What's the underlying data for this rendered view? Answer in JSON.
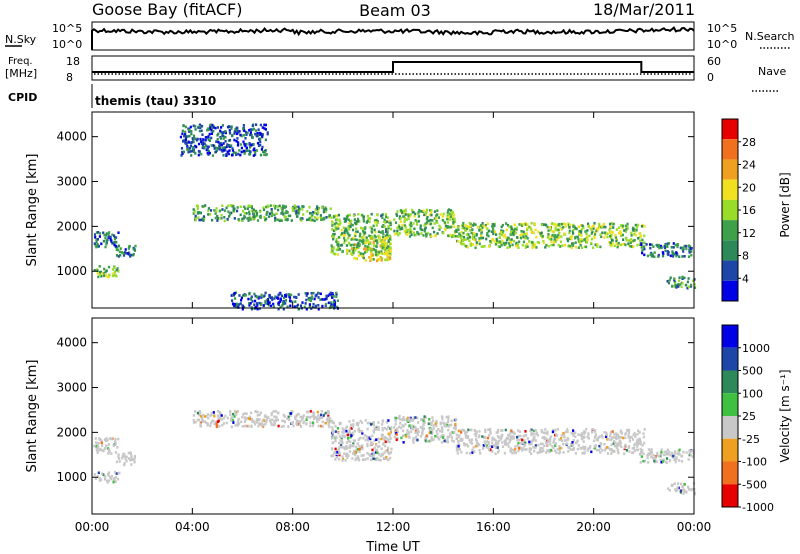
{
  "header": {
    "station": "Goose Bay (fitACF)",
    "beam": "Beam 03",
    "date": "18/Mar/2011"
  },
  "labels": {
    "nsky": "N.Sky",
    "nsearch": "N.Search",
    "freq": "Freq.",
    "freq_unit": "[MHz]",
    "cpid": "CPID",
    "nave": "Nave",
    "cpid_value": "themis (tau) 3310",
    "exp_top": "10^5",
    "exp_bottom": "10^0",
    "freq_tick_high": "18",
    "freq_tick_low": "8",
    "nave_tick_high": "60",
    "nave_tick_low": "0"
  },
  "chart_data": [
    {
      "type": "heatmap",
      "name": "power-panel",
      "xlabel": "",
      "ylabel": "Slant Range [km]",
      "colorbar_label": "Power [dB]",
      "xlim": [
        0,
        24
      ],
      "ylim": [
        180,
        4550
      ],
      "yticks": [
        "1000",
        "2000",
        "3000",
        "4000"
      ],
      "colorbar_ticks": [
        "4",
        "8",
        "12",
        "16",
        "20",
        "24",
        "28"
      ],
      "colorbar_range": [
        0,
        32
      ],
      "colors": [
        "#0000e6",
        "#1e46a8",
        "#2d8a58",
        "#3fa04a",
        "#9adc2a",
        "#f0e020",
        "#f0a020",
        "#f07020",
        "#e60000"
      ],
      "regions": [
        {
          "t0": 0.05,
          "t1": 1.05,
          "r0": 1550,
          "r1": 1900,
          "v": 8
        },
        {
          "t0": 0.05,
          "t1": 1.05,
          "r0": 900,
          "r1": 1150,
          "v": 14
        },
        {
          "t0": 0.9,
          "t1": 1.7,
          "r0": 1300,
          "r1": 1600,
          "v": 8
        },
        {
          "t0": 4.0,
          "t1": 9.5,
          "r0": 2150,
          "r1": 2500,
          "v": 12
        },
        {
          "t0": 9.5,
          "t1": 11.9,
          "r0": 1400,
          "r1": 2300,
          "v": 13
        },
        {
          "t0": 10.3,
          "t1": 11.9,
          "r0": 1250,
          "r1": 1800,
          "v": 17
        },
        {
          "t0": 12.0,
          "t1": 14.5,
          "r0": 1800,
          "r1": 2400,
          "v": 14
        },
        {
          "t0": 14.5,
          "t1": 22.0,
          "r0": 1550,
          "r1": 2100,
          "v": 15
        },
        {
          "t0": 21.8,
          "t1": 24.0,
          "r0": 1350,
          "r1": 1650,
          "v": 8
        },
        {
          "t0": 22.9,
          "t1": 24.0,
          "r0": 650,
          "r1": 900,
          "v": 10
        },
        {
          "t0": 5.5,
          "t1": 9.8,
          "r0": 180,
          "r1": 550,
          "v": 6
        },
        {
          "t0": 3.5,
          "t1": 7.0,
          "r0": 3600,
          "r1": 4300,
          "v": 6
        }
      ]
    },
    {
      "type": "heatmap",
      "name": "velocity-panel",
      "xlabel": "Time UT",
      "ylabel": "Slant Range [km]",
      "colorbar_label": "Velocity [m s⁻¹]",
      "xlim": [
        0,
        24
      ],
      "ylim": [
        180,
        4550
      ],
      "xticks": [
        "00:00",
        "04:00",
        "08:00",
        "12:00",
        "16:00",
        "20:00",
        "00:00"
      ],
      "yticks": [
        "1000",
        "2000",
        "3000",
        "4000"
      ],
      "colorbar_ticks": [
        "1000",
        "500",
        "100",
        "25",
        "-25",
        "-100",
        "-500",
        "-1000"
      ],
      "colors": [
        "#0000e6",
        "#1e46a8",
        "#2d8a58",
        "#3fc040",
        "#c8c8c8",
        "#f0a020",
        "#f07020",
        "#e60000"
      ],
      "regions": [
        {
          "t0": 0.05,
          "t1": 1.05,
          "r0": 1550,
          "r1": 1900,
          "v": 3
        },
        {
          "t0": 0.05,
          "t1": 1.05,
          "r0": 900,
          "r1": 1150,
          "v": 4
        },
        {
          "t0": 0.9,
          "t1": 1.7,
          "r0": 1300,
          "r1": 1600,
          "v": 2
        },
        {
          "t0": 4.0,
          "t1": 9.5,
          "r0": 2150,
          "r1": 2500,
          "v": 4
        },
        {
          "t0": 9.5,
          "t1": 11.9,
          "r0": 1400,
          "r1": 2300,
          "v": 4
        },
        {
          "t0": 12.0,
          "t1": 14.5,
          "r0": 1800,
          "r1": 2400,
          "v": 4
        },
        {
          "t0": 14.5,
          "t1": 22.0,
          "r0": 1550,
          "r1": 2100,
          "v": 4
        },
        {
          "t0": 21.8,
          "t1": 24.0,
          "r0": 1350,
          "r1": 1650,
          "v": 4
        },
        {
          "t0": 22.9,
          "t1": 24.0,
          "r0": 650,
          "r1": 900,
          "v": 4
        }
      ]
    }
  ]
}
